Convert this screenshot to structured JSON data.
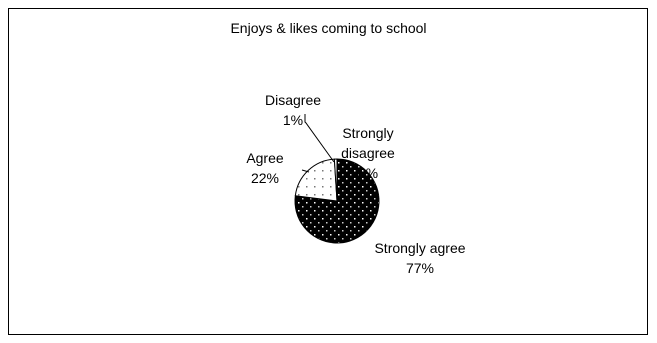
{
  "chart_data": {
    "type": "pie",
    "title": "Enjoys & likes coming to school",
    "categories": [
      "Strongly agree",
      "Agree",
      "Disagree",
      "Strongly disagree"
    ],
    "values": [
      77,
      22,
      1,
      0
    ],
    "value_labels": [
      "77%",
      "22%",
      "1%",
      "0%"
    ]
  }
}
